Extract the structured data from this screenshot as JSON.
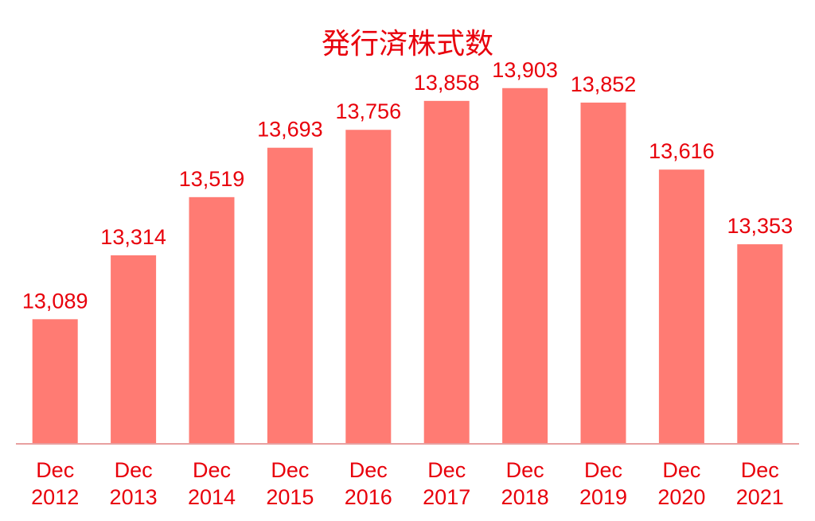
{
  "chart_data": {
    "type": "bar",
    "title": "発行済株式数",
    "categories": [
      [
        "Dec",
        "2012"
      ],
      [
        "Dec",
        "2013"
      ],
      [
        "Dec",
        "2014"
      ],
      [
        "Dec",
        "2015"
      ],
      [
        "Dec",
        "2016"
      ],
      [
        "Dec",
        "2017"
      ],
      [
        "Dec",
        "2018"
      ],
      [
        "Dec",
        "2019"
      ],
      [
        "Dec",
        "2020"
      ],
      [
        "Dec",
        "2021"
      ]
    ],
    "values": [
      13089,
      13314,
      13519,
      13693,
      13756,
      13858,
      13903,
      13852,
      13616,
      13353
    ],
    "value_labels": [
      "13,089",
      "13,314",
      "13,519",
      "13,693",
      "13,756",
      "13,858",
      "13,903",
      "13,852",
      "13,616",
      "13,353"
    ],
    "xlabel": "",
    "ylabel": "",
    "ylim": [
      12650,
      13950
    ],
    "grid": false,
    "legend": "none",
    "colors": {
      "bar": "#ff7b73",
      "text": "#e8000b",
      "axis": "#e8a0a0"
    }
  }
}
